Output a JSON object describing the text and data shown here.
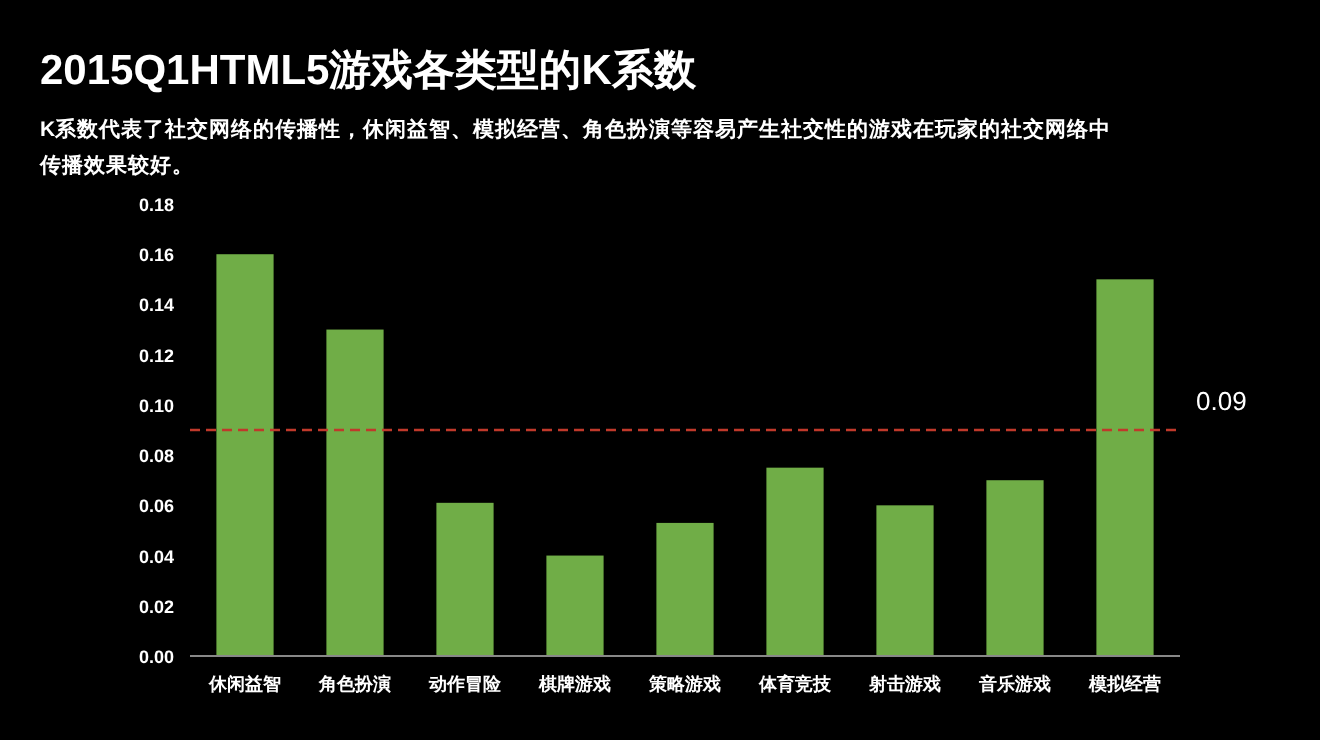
{
  "chart_data": {
    "type": "bar",
    "title": "2015Q1HTML5游戏各类型的K系数",
    "subtitle": "K系数代表了社交网络的传播性，休闲益智、模拟经营、角色扮演等容易产生社交性的游戏在玩家的社交网络中传播效果较好。",
    "categories": [
      "休闲益智",
      "角色扮演",
      "动作冒险",
      "棋牌游戏",
      "策略游戏",
      "体育竞技",
      "射击游戏",
      "音乐游戏",
      "模拟经营"
    ],
    "values": [
      0.16,
      0.13,
      0.061,
      0.04,
      0.053,
      0.075,
      0.06,
      0.07,
      0.15
    ],
    "color": "#70ad47",
    "ylim": [
      0,
      0.18
    ],
    "yticks": [
      {
        "value": 0,
        "label": "0.00"
      },
      {
        "value": 0.02,
        "label": "0.02"
      },
      {
        "value": 0.04,
        "label": "0.04"
      },
      {
        "value": 0.06,
        "label": "0.06"
      },
      {
        "value": 0.08,
        "label": "0.08"
      },
      {
        "value": 0.1,
        "label": "0.10"
      },
      {
        "value": 0.12,
        "label": "0.12"
      },
      {
        "value": 0.14,
        "label": "0.14"
      },
      {
        "value": 0.16,
        "label": "0.16"
      },
      {
        "value": 0.18,
        "label": "0.18"
      }
    ],
    "ref_lines": [
      {
        "axis": "y",
        "value": 0.09,
        "label": "0.09",
        "color": "#c0392b",
        "line_style": "dashed"
      }
    ]
  }
}
